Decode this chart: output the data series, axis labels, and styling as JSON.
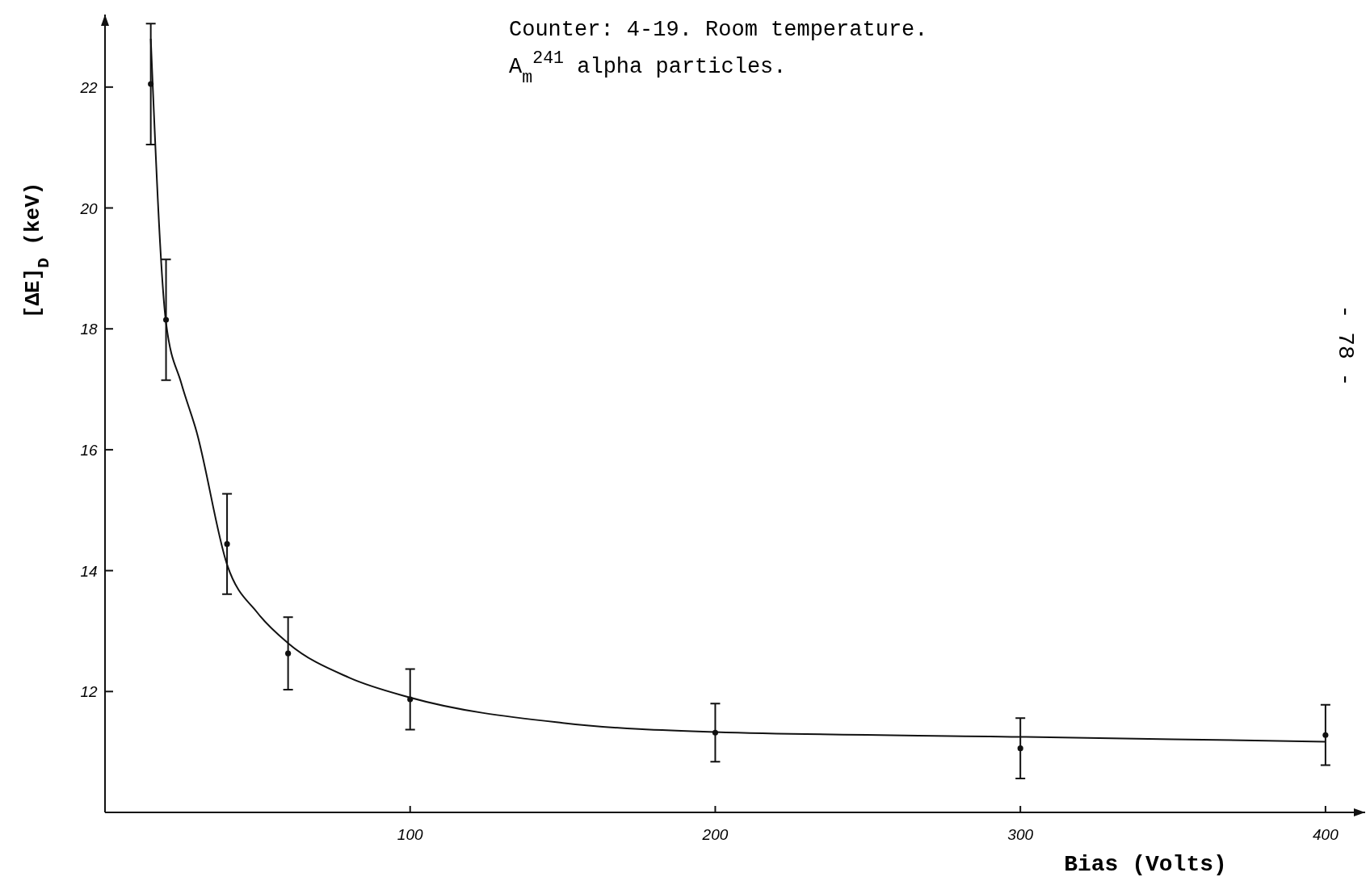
{
  "chart_data": {
    "type": "scatter",
    "xlabel": "Bias (Volts)",
    "ylabel": "[ΔE]$_{D}$ (keV)",
    "annotations": [
      "Counter: 4-19.  Room temperature.",
      "A$_{m}$$^{241}$ alpha particles.",
      "- 78 -"
    ],
    "xlim": [
      0,
      413
    ],
    "ylim": [
      10,
      23.2
    ],
    "xticks": [
      100,
      200,
      300,
      400
    ],
    "yticks": [
      12,
      14,
      16,
      18,
      20,
      22
    ],
    "grid": false,
    "marker": "circle",
    "series": [
      {
        "color": "#111111",
        "x": [
          15,
          20,
          40,
          60,
          100,
          200,
          300,
          400
        ],
        "values": [
          22.05,
          18.15,
          14.44,
          12.63,
          11.87,
          11.32,
          11.06,
          11.28
        ],
        "errors": [
          1,
          1,
          0.83,
          0.6,
          0.5,
          0.48,
          0.5,
          0.5
        ]
      },
      {
        "type": "line",
        "color": "#111111",
        "marker": "none",
        "line_style": "solid",
        "x": [
          15,
          20,
          25,
          30,
          40,
          50,
          60,
          80,
          100,
          150,
          200,
          300,
          400
        ],
        "values": [
          22.8,
          18.1,
          17.1,
          16.3,
          14.1,
          13.3,
          12.8,
          12.23,
          11.9,
          11.48,
          11.33,
          11.25,
          11.17
        ]
      }
    ]
  }
}
